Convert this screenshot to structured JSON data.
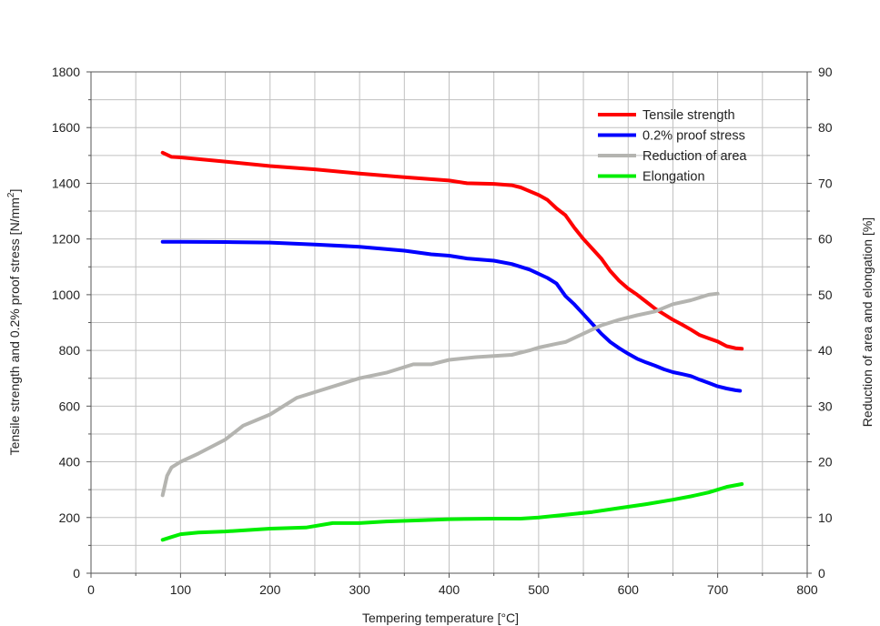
{
  "chart_data": {
    "type": "line",
    "title": "",
    "xlabel": "Tempering temperature [°C]",
    "ylabel_left_main": "Tensile strength and 0.2% proof stress [N/mm",
    "ylabel_left_sup": "2",
    "ylabel_left_end": "]",
    "ylabel_right": "Reduction of area and elongation [%]",
    "xlim": [
      0,
      800
    ],
    "ylim_left": [
      0,
      1800
    ],
    "ylim_right": [
      0,
      90
    ],
    "x_ticks": [
      0,
      100,
      200,
      300,
      400,
      500,
      600,
      700,
      800
    ],
    "y_left_ticks": [
      0,
      200,
      400,
      600,
      800,
      1000,
      1200,
      1400,
      1600,
      1800
    ],
    "y_right_ticks": [
      0,
      10,
      20,
      30,
      40,
      50,
      60,
      70,
      80,
      90
    ],
    "grid": true,
    "legend_position": "top-right",
    "series": [
      {
        "name": "Tensile strength",
        "axis": "left",
        "color": "#ff0000",
        "points": [
          [
            80,
            1510
          ],
          [
            90,
            1495
          ],
          [
            100,
            1493
          ],
          [
            150,
            1478
          ],
          [
            200,
            1462
          ],
          [
            250,
            1450
          ],
          [
            300,
            1435
          ],
          [
            350,
            1422
          ],
          [
            400,
            1410
          ],
          [
            420,
            1400
          ],
          [
            450,
            1398
          ],
          [
            470,
            1393
          ],
          [
            480,
            1385
          ],
          [
            500,
            1358
          ],
          [
            510,
            1340
          ],
          [
            520,
            1310
          ],
          [
            530,
            1285
          ],
          [
            540,
            1240
          ],
          [
            550,
            1200
          ],
          [
            560,
            1165
          ],
          [
            570,
            1130
          ],
          [
            580,
            1085
          ],
          [
            590,
            1050
          ],
          [
            600,
            1022
          ],
          [
            610,
            1000
          ],
          [
            620,
            975
          ],
          [
            630,
            950
          ],
          [
            640,
            930
          ],
          [
            650,
            910
          ],
          [
            660,
            893
          ],
          [
            670,
            875
          ],
          [
            680,
            855
          ],
          [
            690,
            843
          ],
          [
            700,
            832
          ],
          [
            710,
            815
          ],
          [
            720,
            808
          ],
          [
            727,
            806
          ]
        ]
      },
      {
        "name": "0.2% proof stress",
        "axis": "left",
        "color": "#0000ff",
        "points": [
          [
            80,
            1190
          ],
          [
            100,
            1190
          ],
          [
            150,
            1189
          ],
          [
            200,
            1187
          ],
          [
            250,
            1180
          ],
          [
            300,
            1172
          ],
          [
            350,
            1158
          ],
          [
            380,
            1145
          ],
          [
            400,
            1140
          ],
          [
            420,
            1130
          ],
          [
            450,
            1122
          ],
          [
            470,
            1110
          ],
          [
            490,
            1090
          ],
          [
            510,
            1060
          ],
          [
            520,
            1040
          ],
          [
            530,
            995
          ],
          [
            540,
            965
          ],
          [
            550,
            930
          ],
          [
            560,
            895
          ],
          [
            570,
            860
          ],
          [
            580,
            830
          ],
          [
            590,
            808
          ],
          [
            600,
            788
          ],
          [
            610,
            770
          ],
          [
            620,
            757
          ],
          [
            630,
            745
          ],
          [
            640,
            732
          ],
          [
            650,
            722
          ],
          [
            660,
            715
          ],
          [
            670,
            708
          ],
          [
            680,
            695
          ],
          [
            690,
            683
          ],
          [
            700,
            671
          ],
          [
            710,
            663
          ],
          [
            720,
            657
          ],
          [
            725,
            655
          ]
        ]
      },
      {
        "name": "Reduction of area",
        "axis": "right",
        "color": "#b4b4b0",
        "points": [
          [
            80,
            14
          ],
          [
            85,
            17.5
          ],
          [
            90,
            19
          ],
          [
            100,
            20
          ],
          [
            120,
            21.5
          ],
          [
            150,
            24
          ],
          [
            170,
            26.5
          ],
          [
            200,
            28.5
          ],
          [
            230,
            31.5
          ],
          [
            250,
            32.5
          ],
          [
            280,
            34
          ],
          [
            300,
            35
          ],
          [
            330,
            36
          ],
          [
            360,
            37.5
          ],
          [
            380,
            37.5
          ],
          [
            400,
            38.3
          ],
          [
            430,
            38.8
          ],
          [
            450,
            39
          ],
          [
            470,
            39.2
          ],
          [
            490,
            40
          ],
          [
            500,
            40.5
          ],
          [
            520,
            41.2
          ],
          [
            530,
            41.5
          ],
          [
            550,
            43
          ],
          [
            570,
            44.5
          ],
          [
            590,
            45.5
          ],
          [
            610,
            46.3
          ],
          [
            630,
            47
          ],
          [
            650,
            48.3
          ],
          [
            670,
            49
          ],
          [
            690,
            50
          ],
          [
            700,
            50.2
          ]
        ]
      },
      {
        "name": "Elongation",
        "axis": "right",
        "color": "#00ee00",
        "points": [
          [
            80,
            6
          ],
          [
            90,
            6.5
          ],
          [
            100,
            7
          ],
          [
            120,
            7.3
          ],
          [
            150,
            7.5
          ],
          [
            200,
            8
          ],
          [
            240,
            8.2
          ],
          [
            270,
            9
          ],
          [
            300,
            9
          ],
          [
            330,
            9.3
          ],
          [
            370,
            9.5
          ],
          [
            400,
            9.7
          ],
          [
            450,
            9.8
          ],
          [
            480,
            9.8
          ],
          [
            500,
            10
          ],
          [
            530,
            10.5
          ],
          [
            560,
            11
          ],
          [
            590,
            11.7
          ],
          [
            620,
            12.4
          ],
          [
            650,
            13.2
          ],
          [
            670,
            13.8
          ],
          [
            690,
            14.5
          ],
          [
            700,
            15
          ],
          [
            710,
            15.5
          ],
          [
            727,
            16
          ]
        ]
      }
    ]
  }
}
